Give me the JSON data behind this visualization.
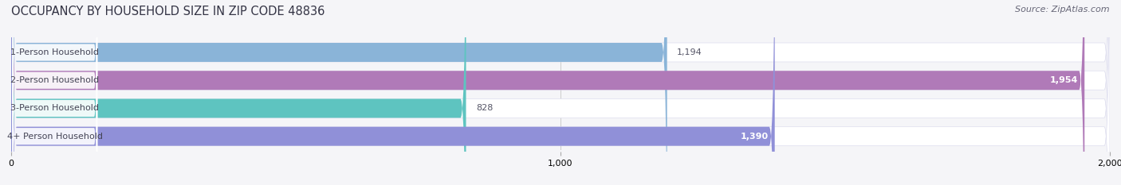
{
  "title": "OCCUPANCY BY HOUSEHOLD SIZE IN ZIP CODE 48836",
  "source": "Source: ZipAtlas.com",
  "categories": [
    "1-Person Household",
    "2-Person Household",
    "3-Person Household",
    "4+ Person Household"
  ],
  "values": [
    1194,
    1954,
    828,
    1390
  ],
  "bar_colors": [
    "#8ab4d8",
    "#b07ab8",
    "#5ec4c0",
    "#9090d8"
  ],
  "value_inside": [
    false,
    true,
    false,
    true
  ],
  "background_color": "#f5f5f8",
  "xlim": [
    0,
    2000
  ],
  "xticks": [
    0,
    1000,
    2000
  ],
  "title_fontsize": 10.5,
  "label_fontsize": 8,
  "value_fontsize": 8,
  "source_fontsize": 8
}
